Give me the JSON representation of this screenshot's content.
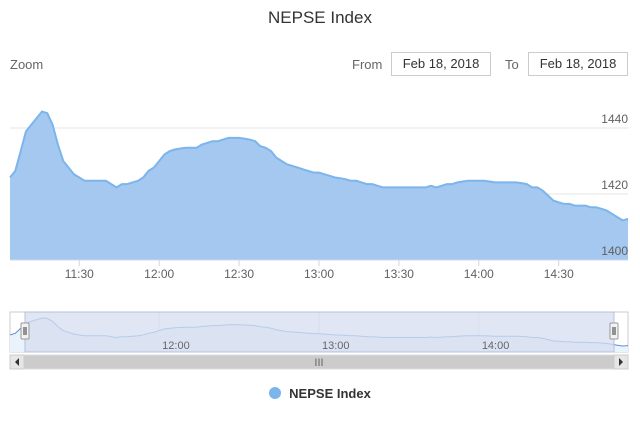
{
  "range_selector": {
    "zoom_label": "Zoom",
    "from_label": "From",
    "to_label": "To",
    "from_value": "Feb 18, 2018",
    "to_value": "Feb 18, 2018"
  },
  "colors": {
    "series_fill": "#a4c8f0",
    "series_line": "#7cb5ec",
    "navigator_mask": "#d6def0",
    "grid": "#e6e6e6"
  },
  "chart_data": {
    "type": "area",
    "title": "NEPSE Index",
    "xlabel": "",
    "ylabel": "",
    "x_ticks": [
      "11:30",
      "12:00",
      "12:30",
      "13:00",
      "13:30",
      "14:00",
      "14:30"
    ],
    "y_ticks": [
      1400,
      1420,
      1440
    ],
    "ylim": [
      1400,
      1450
    ],
    "xlim": [
      "11:04",
      "14:56"
    ],
    "grid": true,
    "legend_position": "bottom-center",
    "series": [
      {
        "name": "NEPSE Index",
        "points": [
          [
            "11:04",
            1425
          ],
          [
            "11:06",
            1427
          ],
          [
            "11:08",
            1433
          ],
          [
            "11:10",
            1439
          ],
          [
            "11:12",
            1441
          ],
          [
            "11:14",
            1443
          ],
          [
            "11:16",
            1445
          ],
          [
            "11:18",
            1444.5
          ],
          [
            "11:20",
            1441
          ],
          [
            "11:22",
            1435
          ],
          [
            "11:24",
            1430
          ],
          [
            "11:26",
            1428
          ],
          [
            "11:28",
            1426
          ],
          [
            "11:30",
            1425
          ],
          [
            "11:32",
            1424
          ],
          [
            "11:34",
            1424
          ],
          [
            "11:36",
            1424
          ],
          [
            "11:38",
            1424
          ],
          [
            "11:40",
            1424
          ],
          [
            "11:42",
            1423
          ],
          [
            "11:44",
            1422
          ],
          [
            "11:46",
            1423
          ],
          [
            "11:48",
            1423
          ],
          [
            "11:50",
            1423.5
          ],
          [
            "11:52",
            1424
          ],
          [
            "11:54",
            1425
          ],
          [
            "11:56",
            1427
          ],
          [
            "11:58",
            1428
          ],
          [
            "12:00",
            1430
          ],
          [
            "12:02",
            1432
          ],
          [
            "12:04",
            1433
          ],
          [
            "12:06",
            1433.5
          ],
          [
            "12:08",
            1433.8
          ],
          [
            "12:10",
            1434
          ],
          [
            "12:12",
            1434
          ],
          [
            "12:14",
            1434
          ],
          [
            "12:16",
            1435
          ],
          [
            "12:18",
            1435.5
          ],
          [
            "12:20",
            1436
          ],
          [
            "12:22",
            1436
          ],
          [
            "12:24",
            1436.5
          ],
          [
            "12:26",
            1437
          ],
          [
            "12:28",
            1437
          ],
          [
            "12:30",
            1437
          ],
          [
            "12:32",
            1436.8
          ],
          [
            "12:34",
            1436.5
          ],
          [
            "12:36",
            1436
          ],
          [
            "12:38",
            1434.5
          ],
          [
            "12:40",
            1434
          ],
          [
            "12:42",
            1433
          ],
          [
            "12:44",
            1431
          ],
          [
            "12:46",
            1430
          ],
          [
            "12:48",
            1429
          ],
          [
            "12:50",
            1428.5
          ],
          [
            "12:52",
            1428
          ],
          [
            "12:54",
            1427.5
          ],
          [
            "12:56",
            1427
          ],
          [
            "12:58",
            1426.5
          ],
          [
            "13:00",
            1426.5
          ],
          [
            "13:02",
            1426
          ],
          [
            "13:04",
            1425.5
          ],
          [
            "13:06",
            1425
          ],
          [
            "13:08",
            1424.8
          ],
          [
            "13:10",
            1424.5
          ],
          [
            "13:12",
            1424
          ],
          [
            "13:14",
            1424
          ],
          [
            "13:16",
            1423.5
          ],
          [
            "13:18",
            1423
          ],
          [
            "13:20",
            1423
          ],
          [
            "13:22",
            1422.5
          ],
          [
            "13:24",
            1422
          ],
          [
            "13:26",
            1422
          ],
          [
            "13:28",
            1422
          ],
          [
            "13:30",
            1422
          ],
          [
            "13:32",
            1422
          ],
          [
            "13:34",
            1422
          ],
          [
            "13:36",
            1422
          ],
          [
            "13:38",
            1422
          ],
          [
            "13:40",
            1422
          ],
          [
            "13:42",
            1422.5
          ],
          [
            "13:44",
            1422
          ],
          [
            "13:46",
            1422.5
          ],
          [
            "13:48",
            1423
          ],
          [
            "13:50",
            1423
          ],
          [
            "13:52",
            1423.5
          ],
          [
            "13:54",
            1423.8
          ],
          [
            "13:56",
            1424
          ],
          [
            "13:58",
            1424
          ],
          [
            "14:00",
            1424
          ],
          [
            "14:02",
            1424
          ],
          [
            "14:04",
            1423.8
          ],
          [
            "14:06",
            1423.5
          ],
          [
            "14:08",
            1423.5
          ],
          [
            "14:10",
            1423.5
          ],
          [
            "14:12",
            1423.5
          ],
          [
            "14:14",
            1423.5
          ],
          [
            "14:16",
            1423.3
          ],
          [
            "14:18",
            1423
          ],
          [
            "14:20",
            1422
          ],
          [
            "14:22",
            1422
          ],
          [
            "14:24",
            1421
          ],
          [
            "14:26",
            1419.5
          ],
          [
            "14:28",
            1418
          ],
          [
            "14:30",
            1417.5
          ],
          [
            "14:32",
            1417
          ],
          [
            "14:34",
            1417
          ],
          [
            "14:36",
            1416.5
          ],
          [
            "14:38",
            1416.5
          ],
          [
            "14:40",
            1416.5
          ],
          [
            "14:42",
            1416
          ],
          [
            "14:44",
            1416
          ],
          [
            "14:46",
            1415.5
          ],
          [
            "14:48",
            1415
          ],
          [
            "14:50",
            1414
          ],
          [
            "14:52",
            1413
          ],
          [
            "14:54",
            1412
          ],
          [
            "14:56",
            1412.5
          ]
        ]
      }
    ]
  },
  "navigator": {
    "x_ticks": [
      "12:00",
      "13:00",
      "14:00"
    ],
    "scrollbar_grip": "III"
  }
}
